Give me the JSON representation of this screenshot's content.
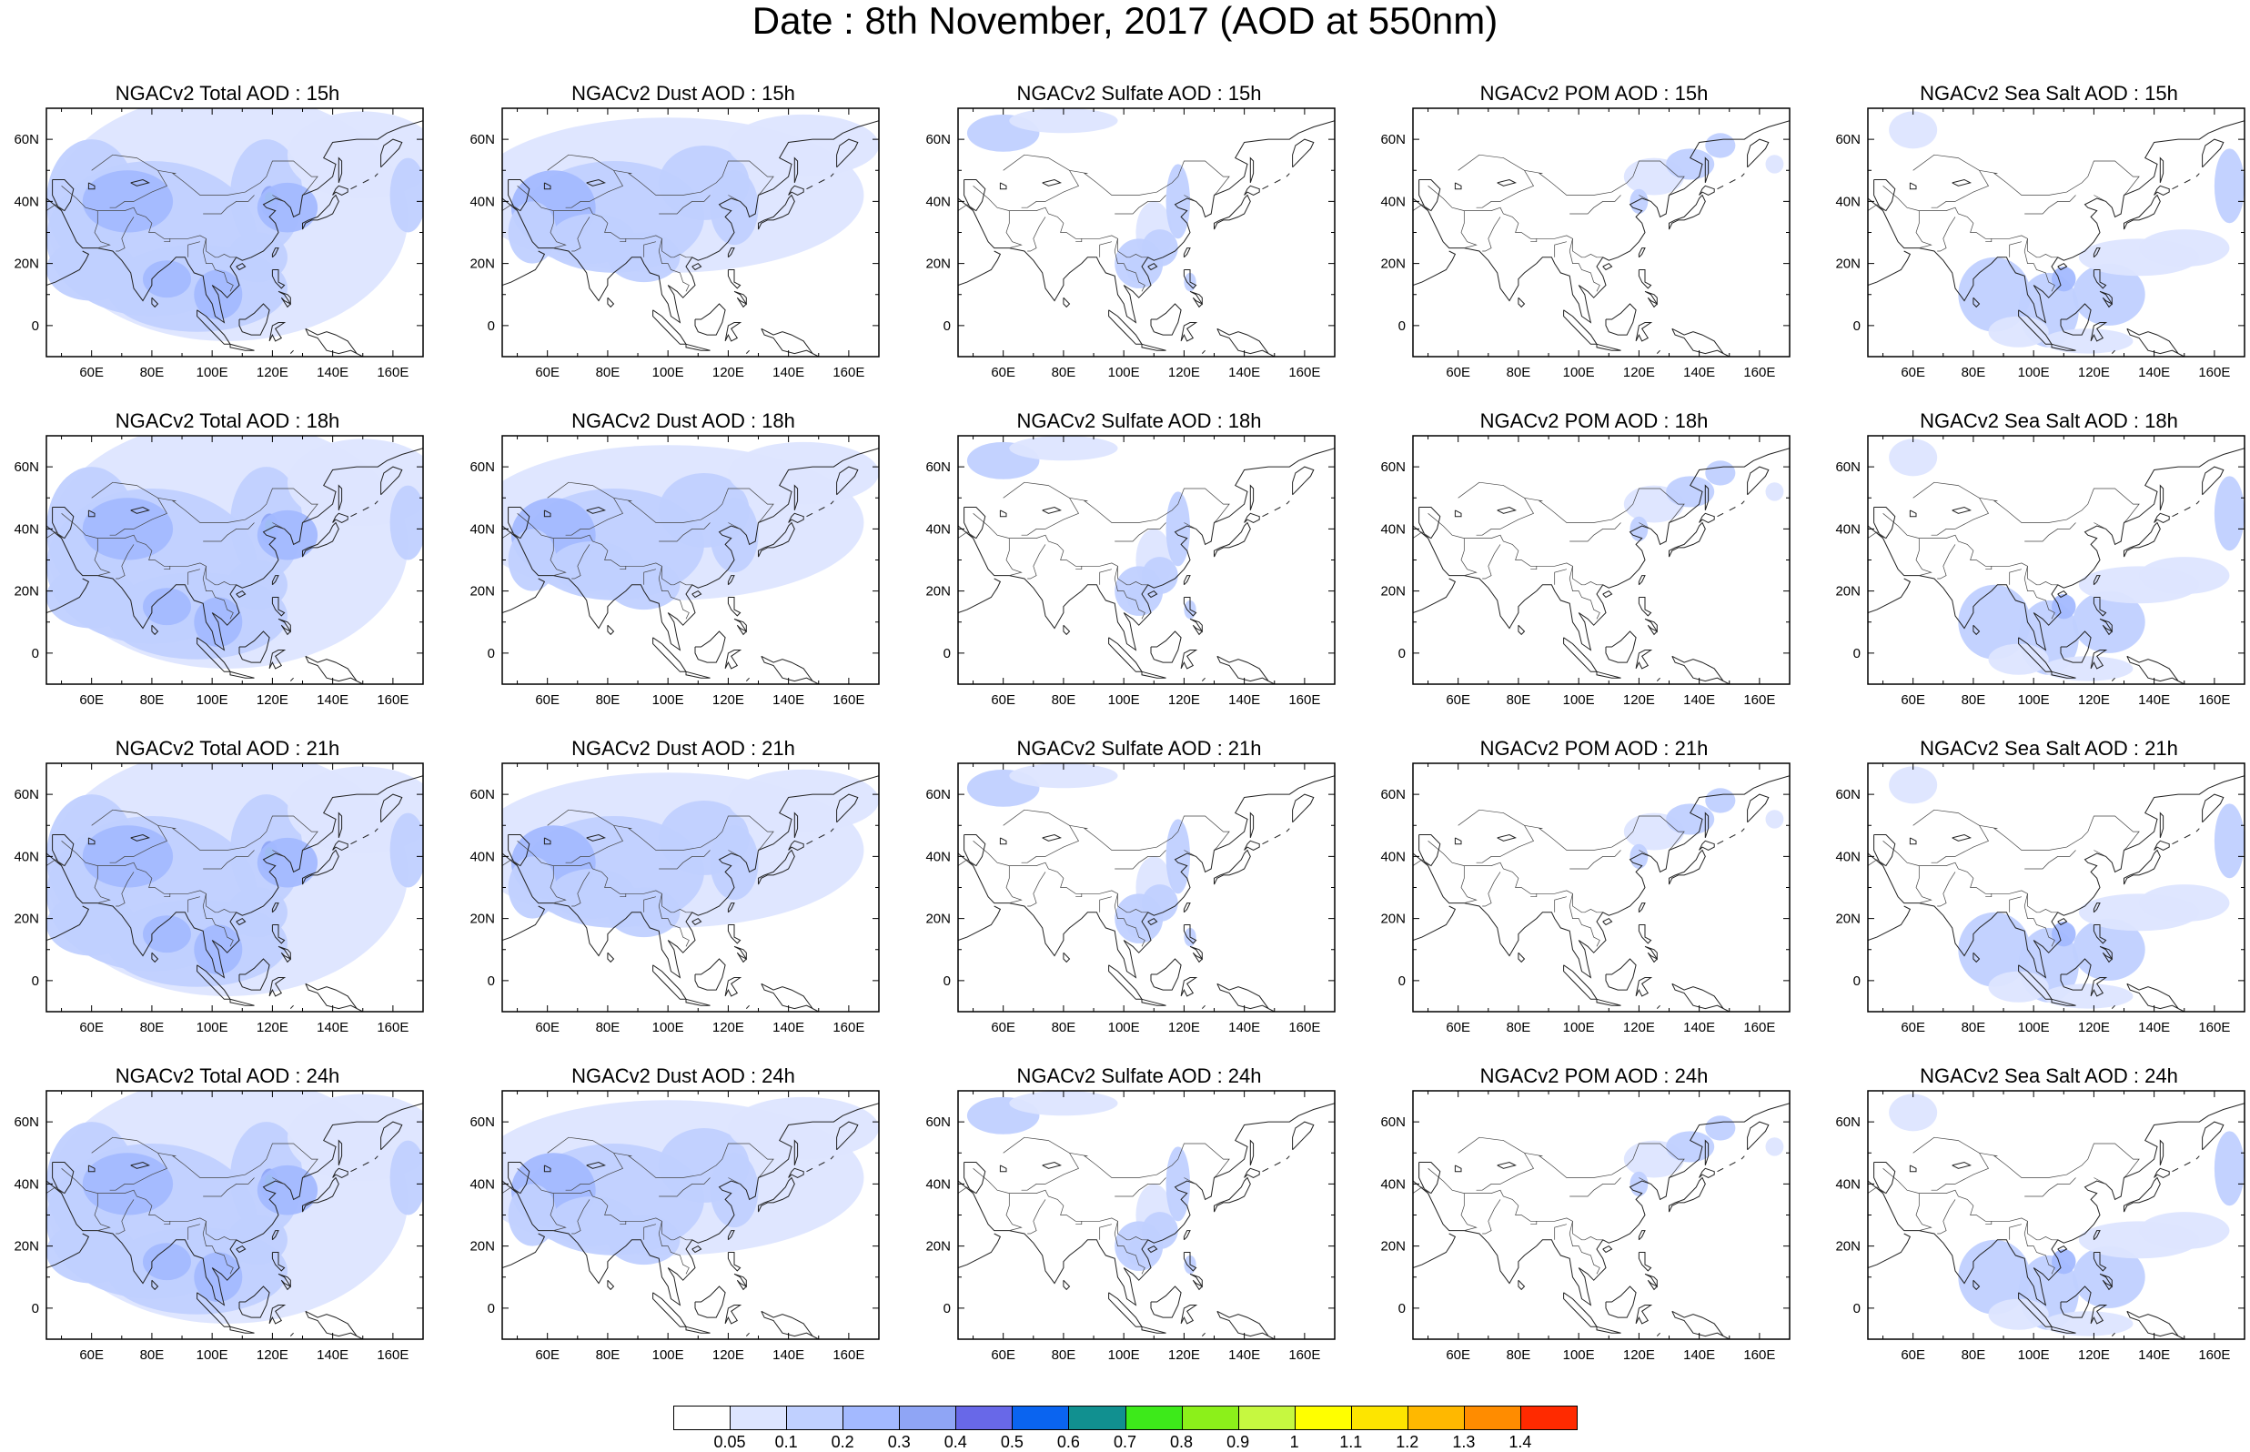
{
  "title": "Date : 8th November, 2017 (AOD at 550nm)",
  "lon_ticks": [
    "60E",
    "80E",
    "100E",
    "120E",
    "140E",
    "160E"
  ],
  "lat_ticks": [
    "60N",
    "40N",
    "20N",
    "0"
  ],
  "colorbar": {
    "labels": [
      "0.05",
      "0.1",
      "0.2",
      "0.3",
      "0.4",
      "0.5",
      "0.6",
      "0.7",
      "0.8",
      "0.9",
      "1",
      "1.1",
      "1.2",
      "1.3",
      "1.4"
    ],
    "colors": [
      "#ffffff",
      "#dde5ff",
      "#c0d0ff",
      "#a3b9ff",
      "#8fa5f5",
      "#6868e8",
      "#0a64f0",
      "#119090",
      "#3dea1a",
      "#8cf01a",
      "#c6f840",
      "#ffff00",
      "#fde500",
      "#ffb800",
      "#ff8c00",
      "#ff2a00"
    ]
  },
  "panels": [
    {
      "title": "NGACv2 Total AOD : 15h",
      "species": "total"
    },
    {
      "title": "NGACv2 Dust AOD : 15h",
      "species": "dust"
    },
    {
      "title": "NGACv2 Sulfate AOD : 15h",
      "species": "sulfate"
    },
    {
      "title": "NGACv2 POM AOD : 15h",
      "species": "pom"
    },
    {
      "title": "NGACv2 Sea Salt AOD : 15h",
      "species": "seasalt"
    },
    {
      "title": "NGACv2 Total AOD : 18h",
      "species": "total"
    },
    {
      "title": "NGACv2 Dust AOD : 18h",
      "species": "dust"
    },
    {
      "title": "NGACv2 Sulfate AOD : 18h",
      "species": "sulfate"
    },
    {
      "title": "NGACv2 POM AOD : 18h",
      "species": "pom"
    },
    {
      "title": "NGACv2 Sea Salt AOD : 18h",
      "species": "seasalt"
    },
    {
      "title": "NGACv2 Total AOD : 21h",
      "species": "total"
    },
    {
      "title": "NGACv2 Dust AOD : 21h",
      "species": "dust"
    },
    {
      "title": "NGACv2 Sulfate AOD : 21h",
      "species": "sulfate"
    },
    {
      "title": "NGACv2 POM AOD : 21h",
      "species": "pom"
    },
    {
      "title": "NGACv2 Sea Salt AOD : 21h",
      "species": "seasalt"
    },
    {
      "title": "NGACv2 Total AOD : 24h",
      "species": "total"
    },
    {
      "title": "NGACv2 Dust AOD : 24h",
      "species": "dust"
    },
    {
      "title": "NGACv2 Sulfate AOD : 24h",
      "species": "sulfate"
    },
    {
      "title": "NGACv2 POM AOD : 24h",
      "species": "pom"
    },
    {
      "title": "NGACv2 Sea Salt  AOD : 24h",
      "species": "seasalt"
    }
  ]
}
